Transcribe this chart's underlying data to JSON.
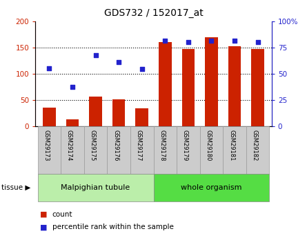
{
  "title": "GDS732 / 152017_at",
  "samples": [
    "GSM29173",
    "GSM29174",
    "GSM29175",
    "GSM29176",
    "GSM29177",
    "GSM29178",
    "GSM29179",
    "GSM29180",
    "GSM29181",
    "GSM29182"
  ],
  "counts": [
    36,
    13,
    56,
    51,
    34,
    160,
    148,
    170,
    152,
    148
  ],
  "percentiles": [
    55,
    37.5,
    67.5,
    61,
    54.5,
    81.5,
    80,
    81.5,
    81.5,
    80
  ],
  "tissue_groups": [
    {
      "label": "Malpighian tubule",
      "start": 0,
      "end": 5,
      "color": "#bbeeaa"
    },
    {
      "label": "whole organism",
      "start": 5,
      "end": 10,
      "color": "#55dd44"
    }
  ],
  "bar_color": "#cc2200",
  "dot_color": "#2222cc",
  "left_ylim": [
    0,
    200
  ],
  "right_ylim": [
    0,
    100
  ],
  "left_yticks": [
    0,
    50,
    100,
    150,
    200
  ],
  "right_yticks": [
    0,
    25,
    50,
    75,
    100
  ],
  "right_ytick_labels": [
    "0",
    "25",
    "50",
    "75",
    "100%"
  ],
  "left_tick_color": "#cc2200",
  "right_tick_color": "#2222cc",
  "grid_lines": [
    50,
    100,
    150
  ],
  "bar_width": 0.55,
  "legend_count_label": "count",
  "legend_percentile_label": "percentile rank within the sample",
  "tissue_label": "tissue",
  "background_color": "#ffffff",
  "tick_label_bg": "#cccccc"
}
